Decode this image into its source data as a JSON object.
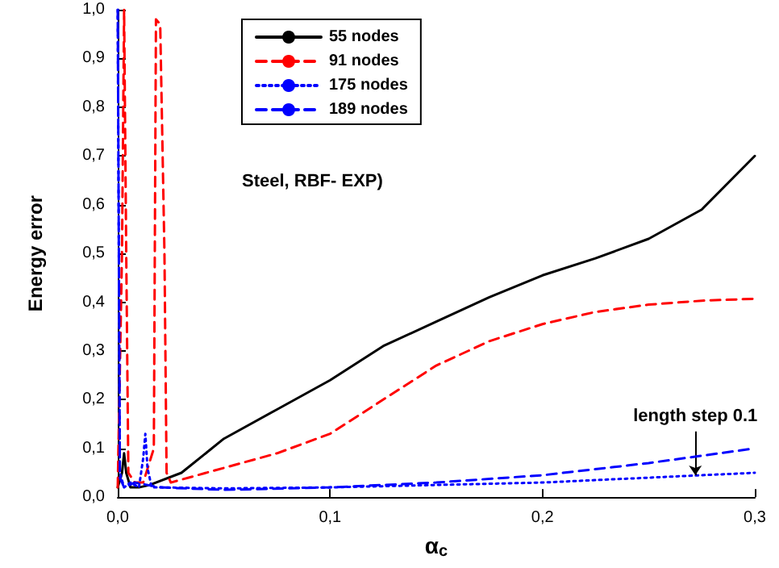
{
  "chart_data": {
    "type": "line",
    "xlabel": "α$_{c}$",
    "ylabel": "Energy error",
    "xlim": [
      0,
      0.3
    ],
    "xticks": [
      {
        "value": 0,
        "label": "0,0"
      },
      {
        "value": 0.1,
        "label": "0,1"
      },
      {
        "value": 0.2,
        "label": "0,2"
      },
      {
        "value": 0.3,
        "label": "0,3"
      }
    ],
    "ylim": [
      0,
      1
    ],
    "yticks": [
      {
        "value": 0,
        "label": "0,0"
      },
      {
        "value": 0.1,
        "label": "0,1"
      },
      {
        "value": 0.2,
        "label": "0,2"
      },
      {
        "value": 0.3,
        "label": "0,3"
      },
      {
        "value": 0.4,
        "label": "0,4"
      },
      {
        "value": 0.5,
        "label": "0,5"
      },
      {
        "value": 0.6,
        "label": "0,6"
      },
      {
        "value": 0.7,
        "label": "0,7"
      },
      {
        "value": 0.8,
        "label": "0,8"
      },
      {
        "value": 0.9,
        "label": "0,9"
      },
      {
        "value": 1,
        "label": "1,0"
      }
    ],
    "grid": false,
    "legend": "top",
    "marker": "none",
    "annotations": [
      "Steel, RBF- EXP)",
      {
        "text": "length step 0.1",
        "x": 0.272,
        "y": 0.045
      }
    ],
    "series": [
      {
        "name": "55 nodes",
        "color": "#000000",
        "line_style": "solid",
        "x": [
          0,
          0.002,
          0.003,
          0.004,
          0.006,
          0.01,
          0.015,
          0.03,
          0.05,
          0.075,
          0.1,
          0.125,
          0.15,
          0.175,
          0.2,
          0.225,
          0.25,
          0.275,
          0.3
        ],
        "values": [
          0.02,
          0.05,
          0.09,
          0.05,
          0.02,
          0.02,
          0.025,
          0.05,
          0.12,
          0.18,
          0.24,
          0.31,
          0.36,
          0.41,
          0.455,
          0.49,
          0.53,
          0.59,
          0.7
        ]
      },
      {
        "name": "91 nodes",
        "color": "#ff0000",
        "line_style": "dashed",
        "x": [
          0,
          0.002,
          0.003,
          0.004,
          0.005,
          0.008,
          0.012,
          0.017,
          0.018,
          0.02,
          0.022,
          0.023,
          0.025,
          0.05,
          0.075,
          0.1,
          0.125,
          0.15,
          0.175,
          0.2,
          0.225,
          0.25,
          0.275,
          0.3
        ],
        "values": [
          0.02,
          0.5,
          1.0,
          0.5,
          0.05,
          0.03,
          0.03,
          0.1,
          0.98,
          0.97,
          0.5,
          0.05,
          0.03,
          0.06,
          0.09,
          0.13,
          0.2,
          0.27,
          0.32,
          0.355,
          0.38,
          0.395,
          0.403,
          0.407
        ]
      },
      {
        "name": "175 nodes",
        "color": "#0000ff",
        "line_style": "dotted",
        "x": [
          0,
          0.001,
          0.003,
          0.006,
          0.01,
          0.012,
          0.013,
          0.014,
          0.016,
          0.02,
          0.05,
          0.1,
          0.15,
          0.2,
          0.25,
          0.3
        ],
        "values": [
          1.0,
          0.05,
          0.02,
          0.03,
          0.02,
          0.08,
          0.13,
          0.06,
          0.02,
          0.02,
          0.018,
          0.02,
          0.025,
          0.03,
          0.04,
          0.05
        ]
      },
      {
        "name": "189 nodes",
        "color": "#0000ff",
        "line_style": "dashed",
        "x": [
          0,
          0.001,
          0.003,
          0.008,
          0.02,
          0.05,
          0.1,
          0.15,
          0.2,
          0.25,
          0.3
        ],
        "values": [
          1.0,
          0.04,
          0.02,
          0.03,
          0.02,
          0.015,
          0.02,
          0.03,
          0.045,
          0.07,
          0.1
        ]
      }
    ]
  }
}
